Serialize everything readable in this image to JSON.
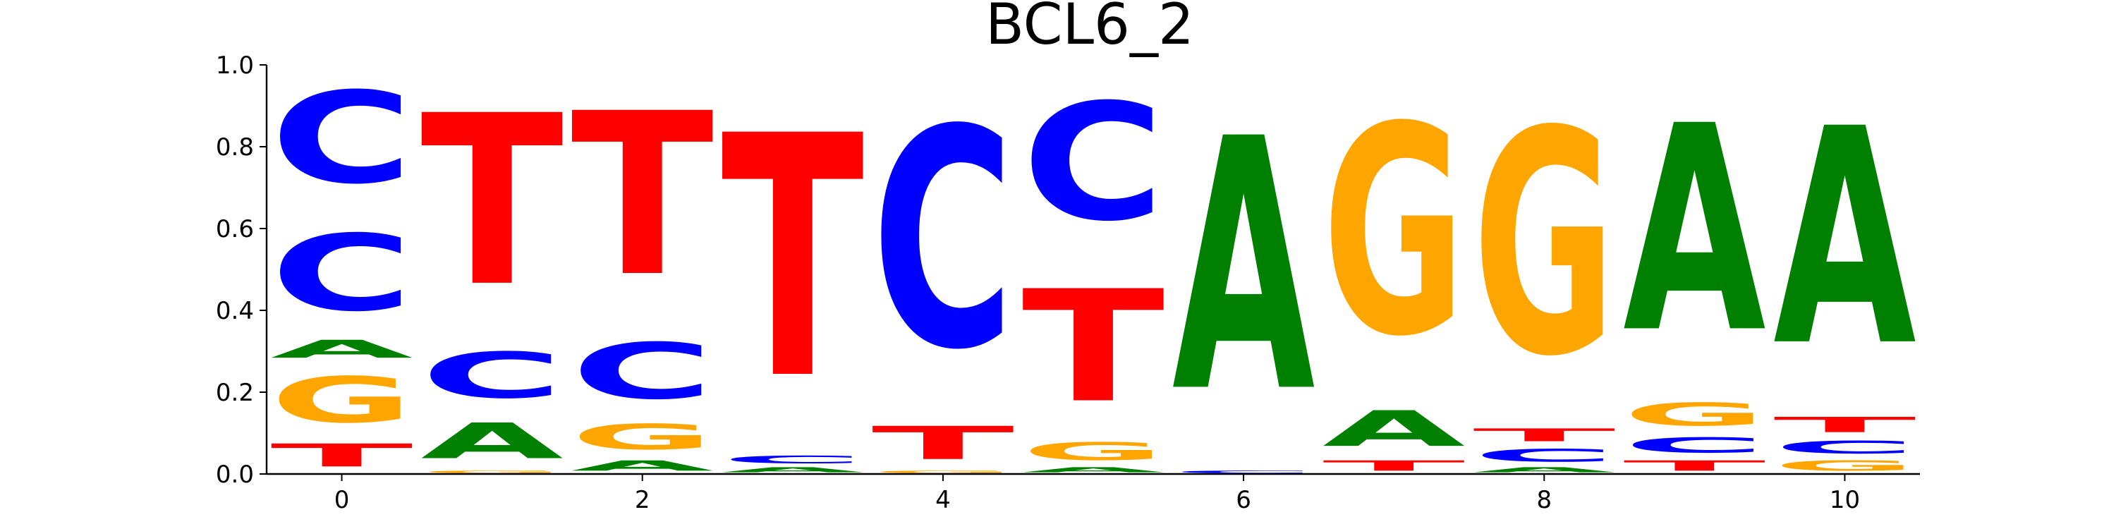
{
  "chart_data": {
    "type": "sequence-logo",
    "title": "BCL6_2",
    "xlabel": "",
    "ylabel": "",
    "ylim": [
      0,
      1.0
    ],
    "xlim": [
      -0.5,
      10.5
    ],
    "x_ticks": [
      0,
      2,
      4,
      6,
      8,
      10
    ],
    "y_ticks": [
      "0.0",
      "0.2",
      "0.4",
      "0.6",
      "0.8",
      "1.0"
    ],
    "y_tick_values": [
      0,
      0.2,
      0.4,
      0.6,
      0.8,
      1.0
    ],
    "grid": false,
    "colors": {
      "A": "#008000",
      "C": "#0000ff",
      "G": "#ffa500",
      "T": "#ff0000"
    },
    "positions": [
      {
        "x": 0,
        "stack": [
          [
            "T",
            0.09
          ],
          [
            "G",
            0.18
          ],
          [
            "A",
            0.07
          ],
          [
            "C",
            0.3
          ],
          [
            "C",
            0.36
          ]
        ]
      },
      {
        "x": 1,
        "stack": [
          [
            "G",
            0.01
          ],
          [
            "A",
            0.14
          ],
          [
            "C",
            0.18
          ],
          [
            "T",
            0.67
          ]
        ]
      },
      {
        "x": 2,
        "stack": [
          [
            "A",
            0.04
          ],
          [
            "G",
            0.1
          ],
          [
            "C",
            0.22
          ],
          [
            "T",
            0.64
          ]
        ]
      },
      {
        "x": 3,
        "stack": [
          [
            "A",
            0.02
          ],
          [
            "C",
            0.03
          ],
          [
            "T",
            0.95
          ]
        ]
      },
      {
        "x": 4,
        "stack": [
          [
            "G",
            0.01
          ],
          [
            "T",
            0.13
          ],
          [
            "C",
            0.86
          ]
        ]
      },
      {
        "x": 5,
        "stack": [
          [
            "A",
            0.02
          ],
          [
            "G",
            0.07
          ],
          [
            "T",
            0.44
          ],
          [
            "C",
            0.46
          ]
        ]
      },
      {
        "x": 6,
        "stack": [
          [
            "C",
            0.01
          ],
          [
            "A",
            0.99
          ]
        ]
      },
      {
        "x": 7,
        "stack": [
          [
            "T",
            0.04
          ],
          [
            "A",
            0.14
          ],
          [
            "G",
            0.82
          ]
        ]
      },
      {
        "x": 8,
        "stack": [
          [
            "A",
            0.02
          ],
          [
            "C",
            0.05
          ],
          [
            "T",
            0.05
          ],
          [
            "G",
            0.88
          ]
        ]
      },
      {
        "x": 9,
        "stack": [
          [
            "T",
            0.04
          ],
          [
            "C",
            0.06
          ],
          [
            "G",
            0.09
          ],
          [
            "A",
            0.81
          ]
        ]
      },
      {
        "x": 10,
        "stack": [
          [
            "G",
            0.04
          ],
          [
            "C",
            0.05
          ],
          [
            "T",
            0.06
          ],
          [
            "A",
            0.85
          ]
        ]
      }
    ]
  }
}
